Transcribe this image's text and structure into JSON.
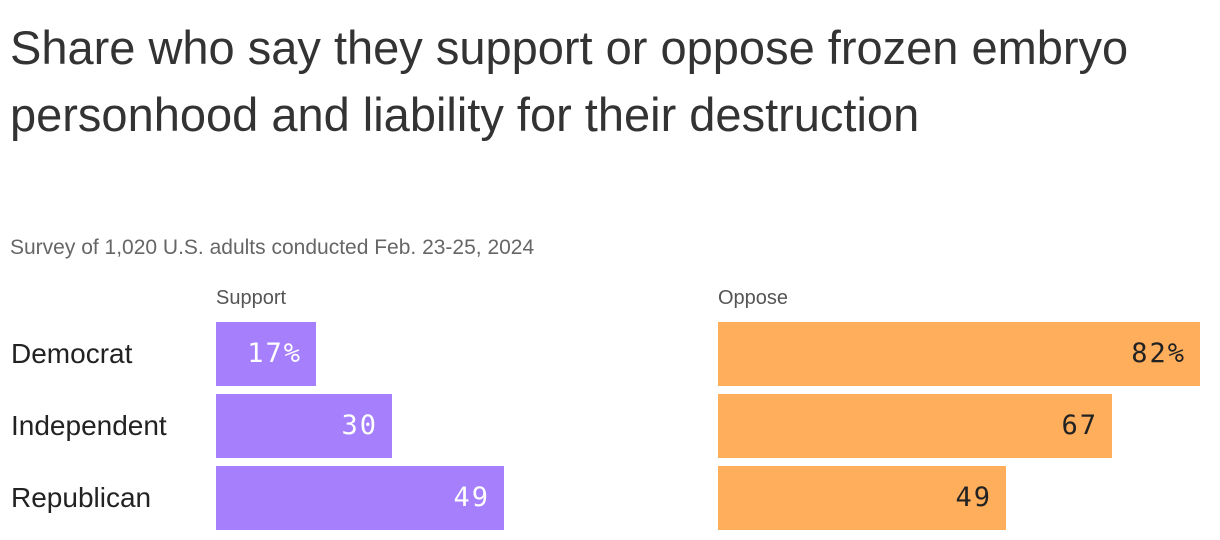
{
  "title": "Share who say they support or oppose frozen embryo personhood and liability for their destruction",
  "subtitle": "Survey of 1,020 U.S. adults conducted Feb. 23-25, 2024",
  "colors": {
    "support": "#a57ffc",
    "oppose": "#ffae5c",
    "support_text": "#ffffff",
    "oppose_text": "#222222"
  },
  "chart_data": {
    "type": "bar",
    "orientation": "horizontal",
    "categories": [
      "Democrat",
      "Independent",
      "Republican"
    ],
    "series": [
      {
        "name": "Support",
        "values": [
          17,
          30,
          49
        ],
        "labels": [
          "17%",
          "30",
          "49"
        ]
      },
      {
        "name": "Oppose",
        "values": [
          82,
          67,
          49
        ],
        "labels": [
          "82%",
          "67",
          "49"
        ]
      }
    ],
    "xlim": [
      0,
      82
    ],
    "grid": false,
    "legend": "none"
  }
}
